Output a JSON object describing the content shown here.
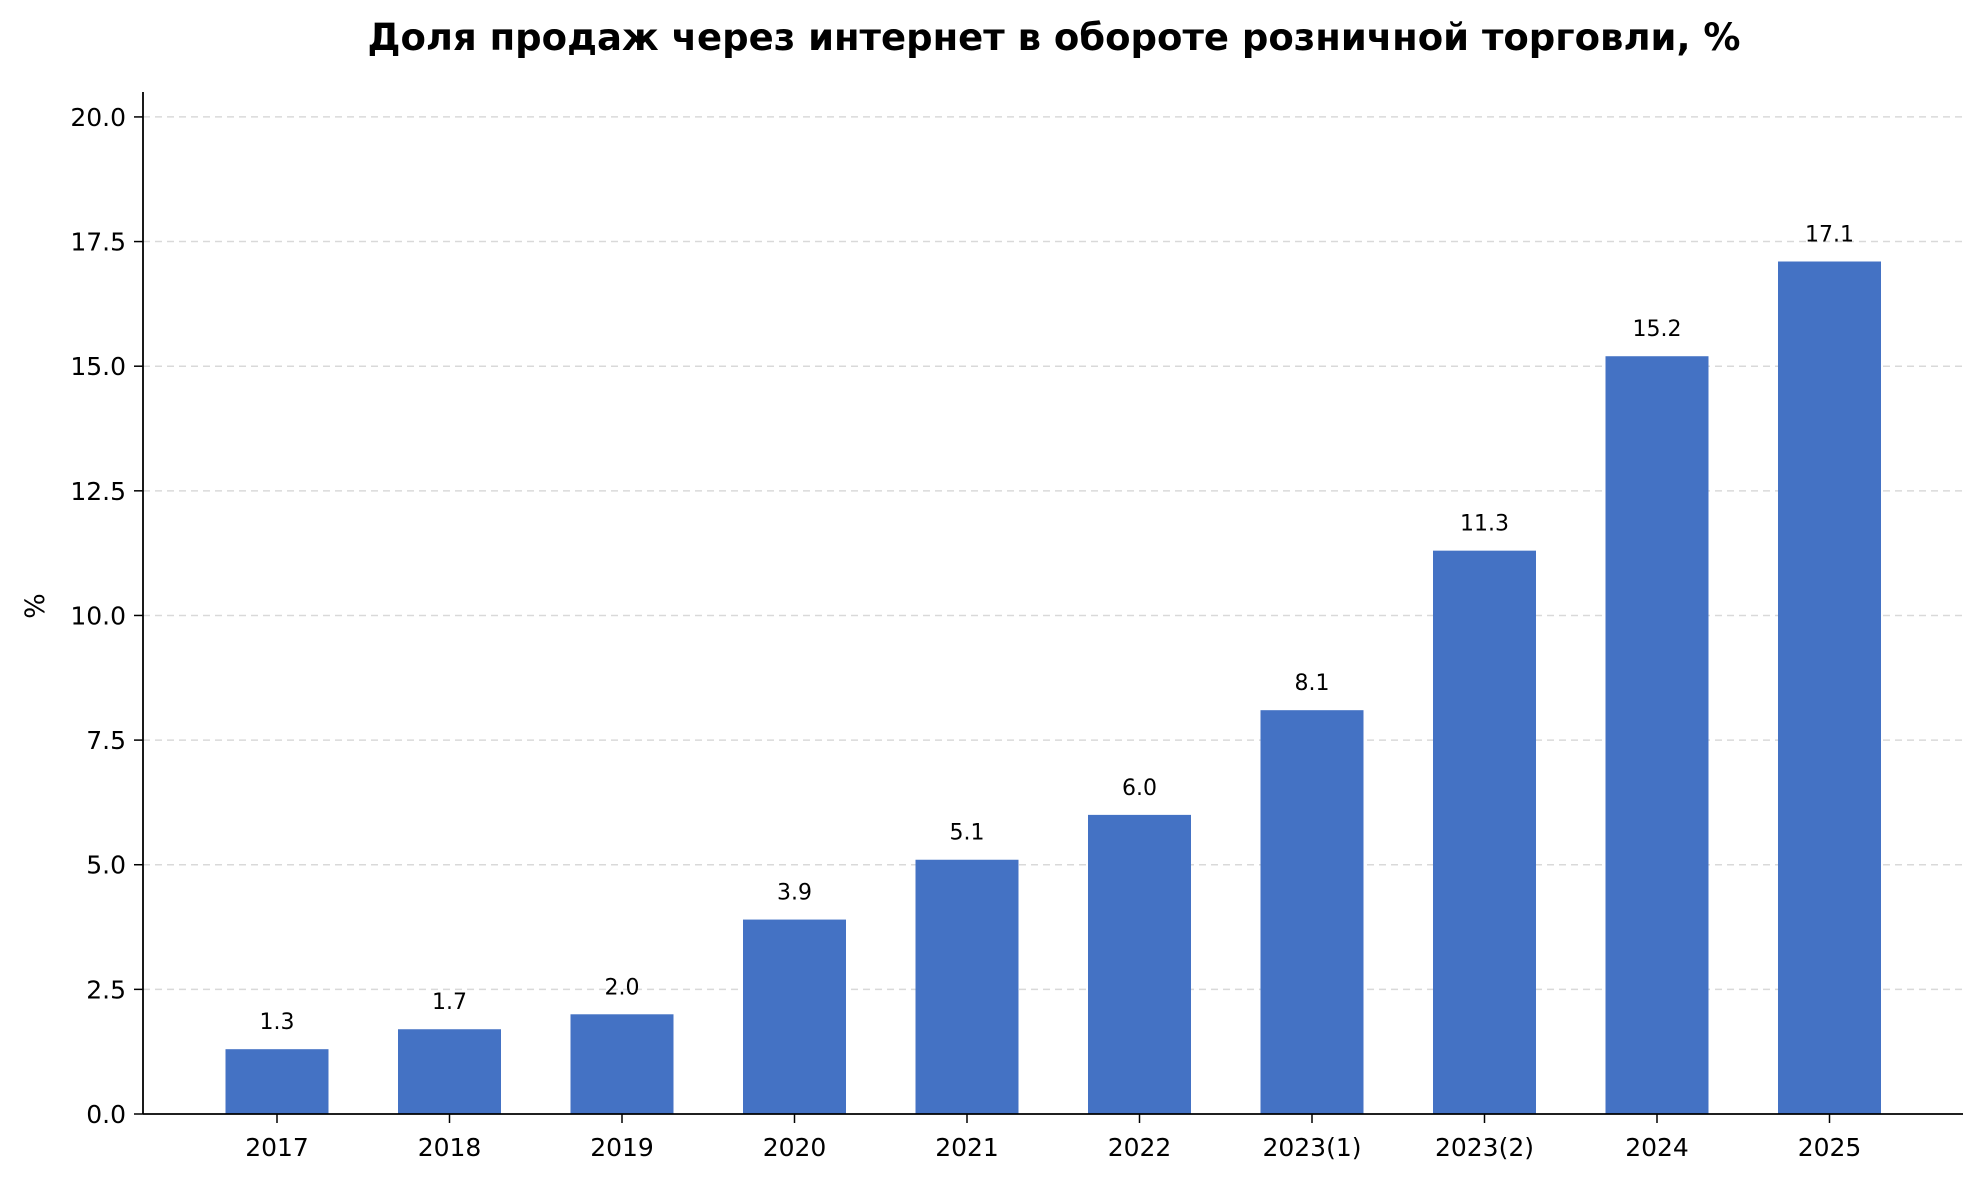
{
  "chart_data": {
    "type": "bar",
    "title": "Доля продаж через интернет в обороте розничной торговли, %",
    "xlabel": "",
    "ylabel": "%",
    "categories": [
      "2017",
      "2018",
      "2019",
      "2020",
      "2021",
      "2022",
      "2023(1)",
      "2023(2)",
      "2024",
      "2025"
    ],
    "values": [
      1.3,
      1.7,
      2.0,
      3.9,
      5.1,
      6.0,
      8.1,
      11.3,
      15.2,
      17.1
    ],
    "data_labels": [
      "1.3",
      "1.7",
      "2.0",
      "3.9",
      "5.1",
      "6.0",
      "8.1",
      "11.3",
      "15.2",
      "17.1"
    ],
    "ylim": [
      0,
      20.5
    ],
    "yticks": [
      0,
      2.5,
      5,
      7.5,
      10,
      12.5,
      15,
      17.5,
      20
    ],
    "ytick_labels": [
      "0.0",
      "2.5",
      "5.0",
      "7.5",
      "10.0",
      "12.5",
      "15.0",
      "17.5",
      "20.0"
    ],
    "grid": "y-dashed",
    "legend": "none",
    "colors": {
      "bar": "#4472C4",
      "grid": "#d9d9d9",
      "axis": "#000000"
    }
  }
}
